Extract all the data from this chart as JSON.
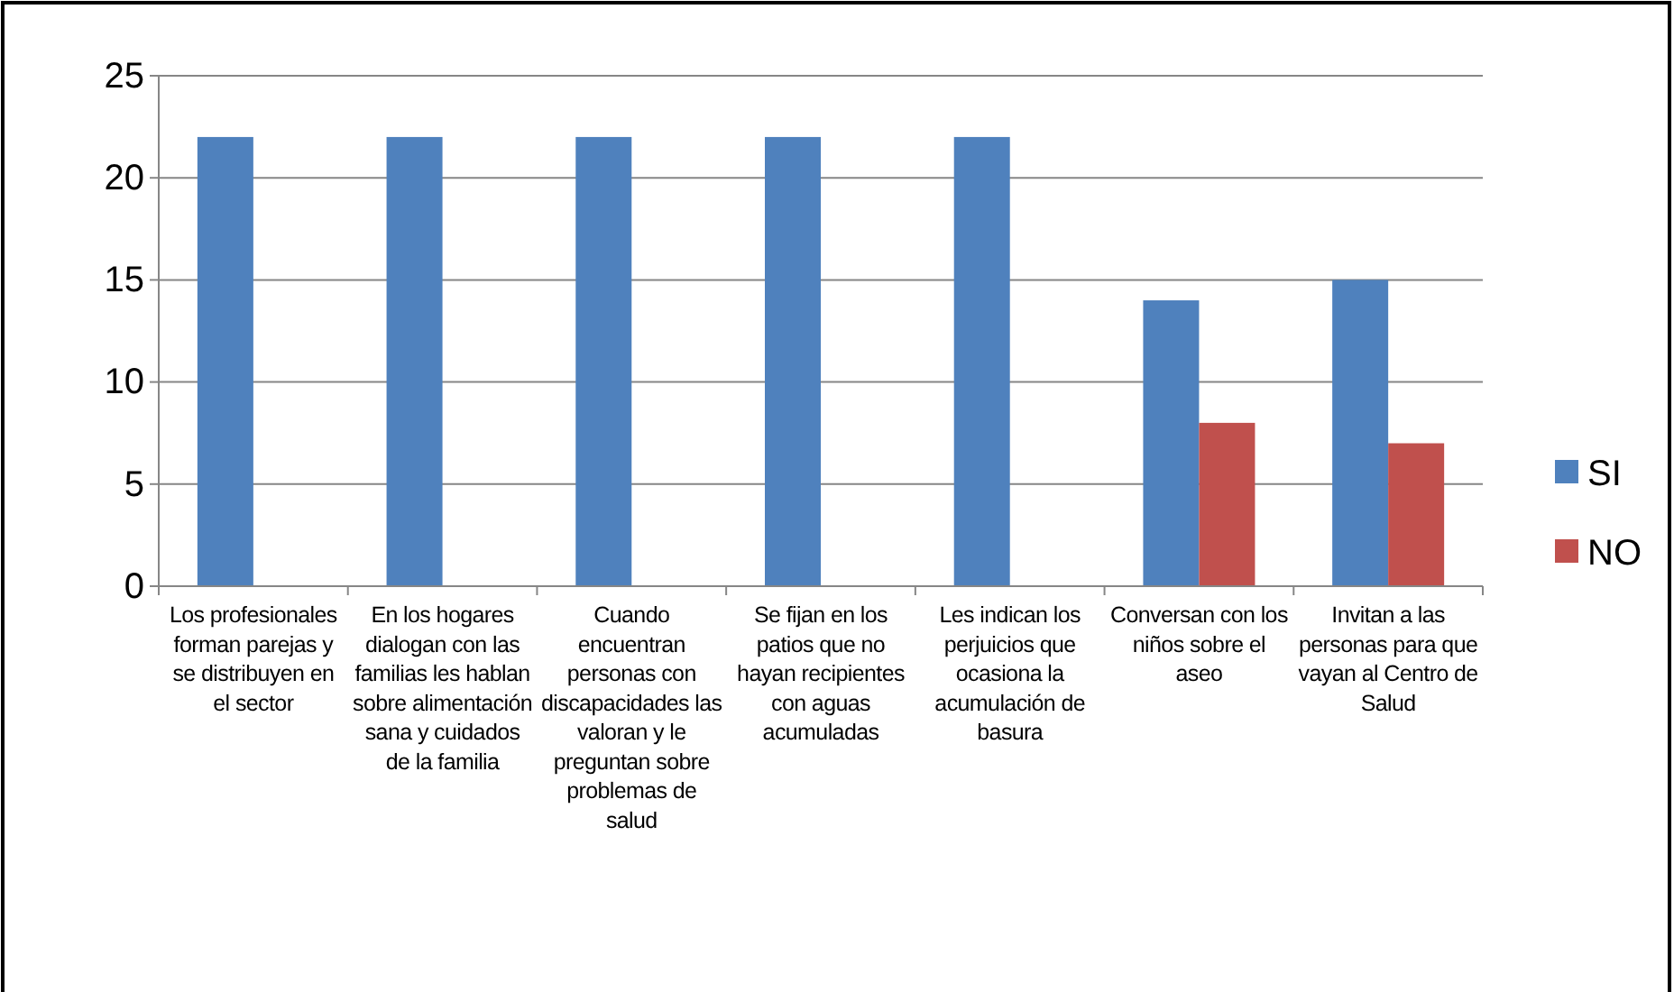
{
  "chart_data": {
    "type": "bar",
    "categories": [
      "Los profesionales forman parejas y se distribuyen en el sector",
      "En los hogares dialogan con las familias les hablan sobre alimentación sana y cuidados de la familia",
      "Cuando encuentran personas con discapacidades las valoran y le preguntan sobre problemas de salud",
      "Se fijan en los patios que no hayan recipientes con aguas acumuladas",
      "Les indican los perjuicios que ocasiona la acumulación de basura",
      "Conversan con los niños sobre el aseo",
      "Invitan a las personas para que vayan al Centro de Salud"
    ],
    "series": [
      {
        "name": "SI",
        "color": "#4f81bd",
        "values": [
          22,
          22,
          22,
          22,
          22,
          14,
          15
        ]
      },
      {
        "name": "NO",
        "color": "#c0504d",
        "values": [
          0,
          0,
          0,
          0,
          0,
          8,
          7
        ]
      }
    ],
    "ylim": [
      0,
      25
    ],
    "yticks": [
      0,
      5,
      10,
      15,
      20,
      25
    ],
    "grid": "y",
    "legend": "right"
  }
}
